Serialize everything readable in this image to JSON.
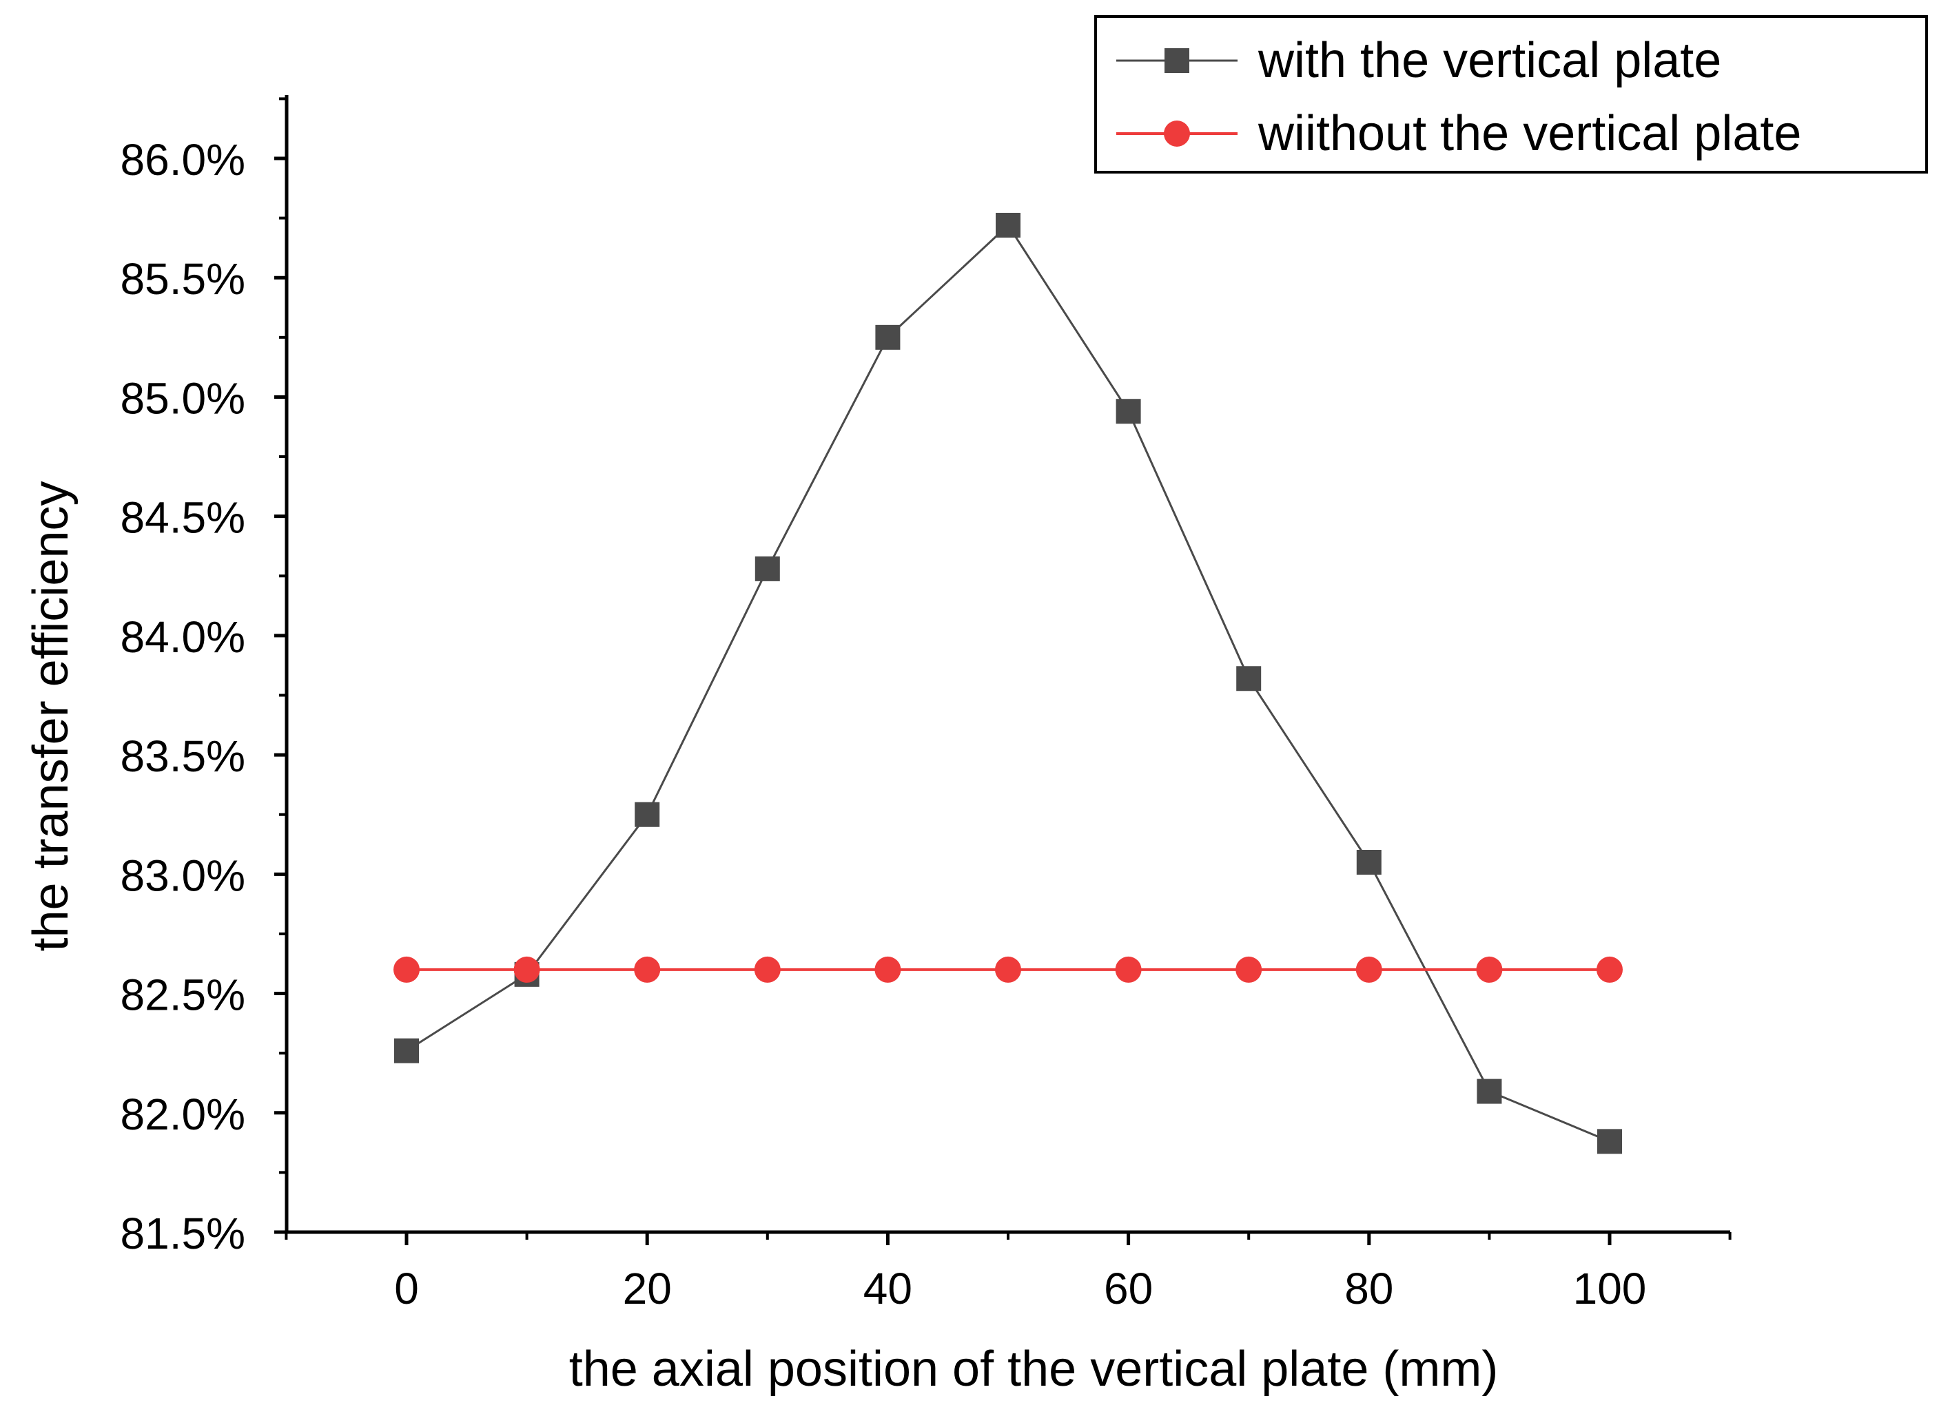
{
  "chart_data": {
    "type": "line",
    "title": "",
    "xlabel": "the axial position of the vertical plate (mm)",
    "ylabel": "the transfer efficiency",
    "xlim": [
      -10,
      110
    ],
    "ylim": [
      81.5,
      86.25
    ],
    "x_ticks": [
      0,
      20,
      40,
      60,
      80,
      100
    ],
    "x_tick_labels": [
      "0",
      "20",
      "40",
      "60",
      "80",
      "100"
    ],
    "y_ticks": [
      81.5,
      82.0,
      82.5,
      83.0,
      83.5,
      84.0,
      84.5,
      85.0,
      85.5,
      86.0
    ],
    "y_tick_labels": [
      "81.5%",
      "82.0%",
      "82.5%",
      "83.0%",
      "83.5%",
      "84.0%",
      "84.5%",
      "85.0%",
      "85.5%",
      "86.0%"
    ],
    "grid": false,
    "legend_position": "top-right",
    "x": [
      0,
      10,
      20,
      30,
      40,
      50,
      60,
      70,
      80,
      90,
      100
    ],
    "series": [
      {
        "name": "with the vertical plate",
        "color": "#4a4a4a",
        "marker": "square",
        "values": [
          82.26,
          82.58,
          83.25,
          84.28,
          85.25,
          85.72,
          84.94,
          83.82,
          83.05,
          82.09,
          81.88
        ]
      },
      {
        "name": "wiithout the vertical plate",
        "color": "#ee3b3b",
        "marker": "circle",
        "values": [
          82.6,
          82.6,
          82.6,
          82.6,
          82.6,
          82.6,
          82.6,
          82.6,
          82.6,
          82.6,
          82.6
        ]
      }
    ]
  }
}
